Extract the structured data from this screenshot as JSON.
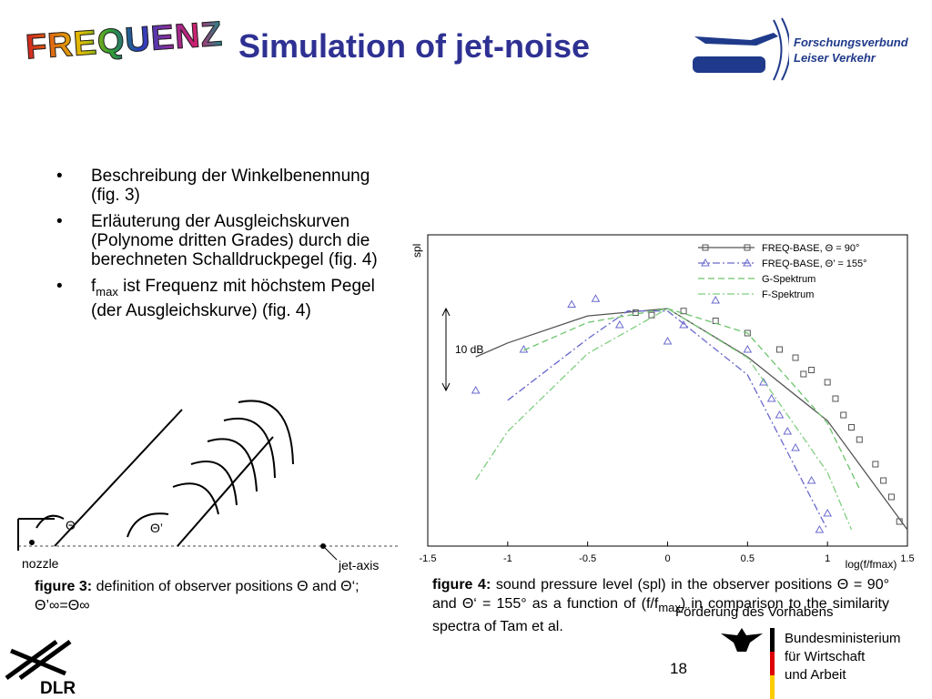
{
  "header": {
    "logo": "FREQUENZ",
    "title": "Simulation of jet-noise",
    "partner_logo": [
      "Forschungsverbund",
      "Leiser Verkehr"
    ]
  },
  "bullets": [
    {
      "text": "Beschreibung der Winkelbenennung (fig. 3)"
    },
    {
      "text": "Erläuterung der Ausgleichskurven (Polynome dritten Grades) durch die berechneten Schalldruckpegel (fig. 4)"
    },
    {
      "parts": [
        "f",
        "max",
        " ist Frequenz mit höchstem Pegel (der Ausgleichskurve) (fig. 4)"
      ]
    }
  ],
  "figure3": {
    "labels": {
      "theta": "Θ",
      "theta_prime": "Θ’",
      "nozzle": "nozzle",
      "jet_axis": "jet-axis"
    },
    "caption": {
      "label": "figure 3:",
      "text": " definition of observer positions Θ and Θ‘; Θ’∞=Θ∞"
    }
  },
  "figure4": {
    "caption": {
      "label": "figure 4:",
      "parts": [
        " sound pressure level (spl) in the observer positions Θ = 90° and Θ‘ = 155° as a function of (f/f",
        "max",
        ") in comparison to the similarity spectra of Tam et al."
      ]
    }
  },
  "chart_data": {
    "type": "line",
    "y_label": "spl",
    "x_label": "log(f/fmax)",
    "scale_bar": {
      "value": 10,
      "label": "10 dB"
    },
    "xlim": [
      -1.5,
      1.5
    ],
    "xticks": [
      -1.5,
      -1,
      -0.5,
      0,
      0.5,
      1,
      1.5
    ],
    "ylim": [
      -29,
      9
    ],
    "grid": false,
    "legend": "upper right",
    "series": [
      {
        "name": "FREQ-BASE, Θ = 90°",
        "color": "#555555",
        "dash": "solid",
        "marker": "square",
        "x": [
          -1.2,
          -1,
          -0.5,
          0,
          0.5,
          1,
          1.5
        ],
        "values": [
          -5.9,
          -4.2,
          -0.9,
          0,
          -5.9,
          -13.7,
          -27
        ],
        "marker_x": [
          -0.2,
          -0.1,
          0.1,
          0.3,
          0.5,
          0.7,
          0.8,
          0.85,
          0.9,
          1.0,
          1.05,
          1.1,
          1.15,
          1.2,
          1.3,
          1.35,
          1.4,
          1.45
        ],
        "marker_values": [
          -0.5,
          -0.8,
          -0.3,
          -1.5,
          -3,
          -5,
          -6,
          -8,
          -7.5,
          -9,
          -11,
          -13,
          -14.5,
          -16,
          -19,
          -21,
          -23,
          -26
        ]
      },
      {
        "name": "FREQ-BASE, Θ’ = 155°",
        "color": "#6a6acd",
        "dash": "dashdot",
        "marker": "triangle",
        "x": [
          -1,
          -0.5,
          -0.25,
          0,
          0.5,
          1
        ],
        "values": [
          -11.2,
          -3.7,
          -0.3,
          -0.3,
          -8.1,
          -27
        ],
        "marker_x": [
          -1.2,
          -0.9,
          -0.6,
          -0.45,
          -0.3,
          0,
          0.1,
          0.3,
          0.5,
          0.6,
          0.65,
          0.7,
          0.75,
          0.8,
          0.9,
          0.95,
          1.0
        ],
        "marker_values": [
          -10,
          -5,
          0.5,
          1.2,
          -2,
          -4,
          -2,
          1,
          -5,
          -9,
          -11,
          -13,
          -15,
          -17,
          -21,
          -27,
          -25
        ]
      },
      {
        "name": "G-Spektrum",
        "color": "#6cc46c",
        "dash": "dashed",
        "x": [
          -0.9,
          -0.5,
          0,
          0.5,
          1,
          1.2
        ],
        "values": [
          -5.1,
          -1.7,
          0,
          -3,
          -14,
          -22
        ]
      },
      {
        "name": "F-Spektrum",
        "color": "#7fcf7f",
        "dash": "dashdot",
        "x": [
          -1.2,
          -1,
          -0.5,
          0,
          0.5,
          1,
          1.15
        ],
        "values": [
          -20.9,
          -15,
          -5.5,
          0,
          -6,
          -20,
          -27
        ]
      }
    ]
  },
  "footer": {
    "page": "18",
    "funding": "Förderung des Vorhabens",
    "ministry": [
      "Bundesministerium",
      "für Wirtschaft",
      "und Arbeit"
    ],
    "dlr": "DLR"
  }
}
